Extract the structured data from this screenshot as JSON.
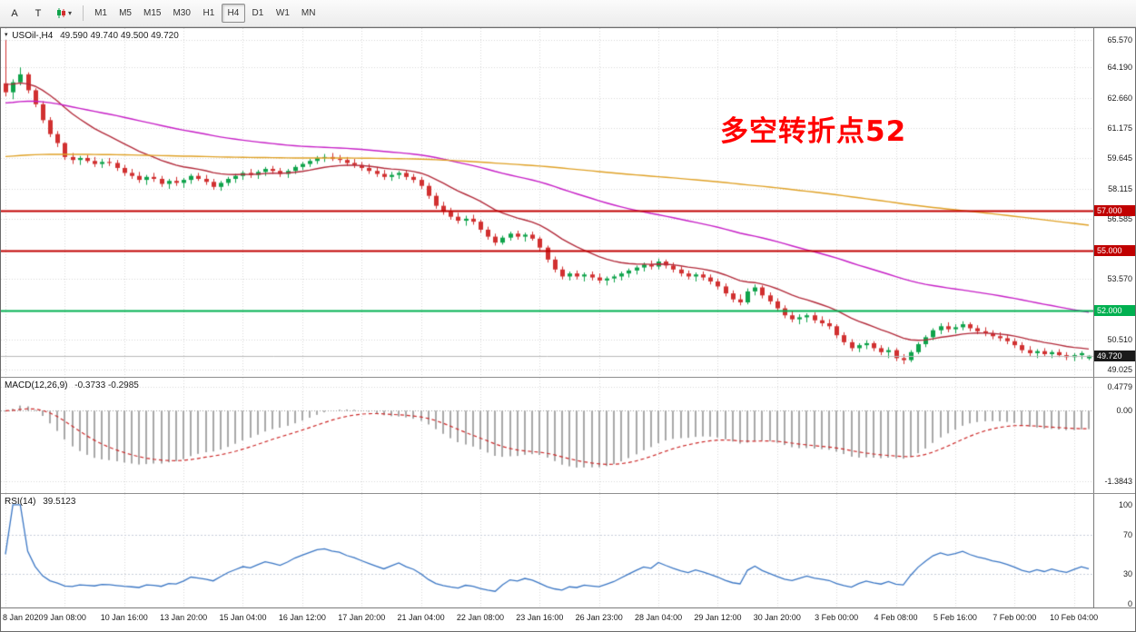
{
  "toolbar": {
    "tool_a": "A",
    "tool_t": "T",
    "caret": "▾",
    "timeframes": [
      "M1",
      "M5",
      "M15",
      "M30",
      "H1",
      "H4",
      "D1",
      "W1",
      "MN"
    ],
    "active_timeframe": "H4"
  },
  "chart": {
    "marker": "▾",
    "symbol_tf": "USOil-,H4",
    "ohlc": "49.590 49.740 49.500 49.720",
    "annotation": "多空转折点52"
  },
  "macd": {
    "label": "MACD(12,26,9)",
    "values": "-0.3733 -0.2985"
  },
  "rsi": {
    "label": "RSI(14)",
    "value": "39.5123"
  },
  "colors": {
    "candle_up": "#0fa34b",
    "candle_down": "#d13030",
    "grid": "#d6d6d6",
    "zero_line": "#9a9a9a",
    "macd_hist": "#a8a8a8",
    "macd_signal": "#cc2a2a",
    "rsi_line": "#3a76c4",
    "rsi_level": "#c6ccd8",
    "annotation": "#ff0000"
  },
  "chart_data": {
    "type": "candlestick",
    "symbol": "USOil-",
    "timeframe": "H4",
    "last_ohlc": {
      "open": 49.59,
      "high": 49.74,
      "low": 49.5,
      "close": 49.72
    },
    "price_axis": {
      "min": 48.66,
      "max": 66.17,
      "ticks": [
        "65.570",
        "64.190",
        "62.660",
        "61.175",
        "59.645",
        "58.115",
        "56.585",
        "53.570",
        "50.510",
        "49.025"
      ]
    },
    "levels": [
      {
        "value": 57.0,
        "label": "57.000",
        "line_color": "#c00000",
        "badge_color": "#c00000",
        "line_width": 2
      },
      {
        "value": 55.0,
        "label": "55.000",
        "line_color": "#c00000",
        "badge_color": "#c00000",
        "line_width": 2
      },
      {
        "value": 52.0,
        "label": "52.000",
        "line_color": "#00b050",
        "badge_color": "#00b050",
        "line_width": 2
      },
      {
        "value": 49.72,
        "label": "49.720",
        "line_color": "#b8b8b8",
        "badge_color": "#1a1a1a",
        "line_width": 1
      }
    ],
    "moving_averages": [
      {
        "name": "ma-fast",
        "period": 16,
        "seed": 63.4,
        "color": "#b22a3a"
      },
      {
        "name": "ma-mid",
        "period": 70,
        "seed": 62.4,
        "color": "#c61fc6"
      },
      {
        "name": "ma-slow",
        "period": 300,
        "seed": 59.7,
        "color": "#dfa126"
      }
    ],
    "macd": {
      "fast": 12,
      "slow": 26,
      "signal": 9,
      "axis": {
        "min": -1.62,
        "max": 0.65,
        "ticks": [
          "0.4779",
          "0.00",
          "-1.3843"
        ]
      }
    },
    "rsi": {
      "period": 14,
      "axis": {
        "min": -4,
        "max": 111,
        "ticks": [
          "100",
          "70",
          "30",
          "0"
        ],
        "levels": [
          70,
          30
        ]
      }
    },
    "time_labels": [
      "8 Jan 2020",
      "9 Jan 08:00",
      "10 Jan 16:00",
      "13 Jan 20:00",
      "15 Jan 04:00",
      "16 Jan 12:00",
      "17 Jan 20:00",
      "21 Jan 04:00",
      "22 Jan 08:00",
      "23 Jan 16:00",
      "26 Jan 23:00",
      "28 Jan 04:00",
      "29 Jan 12:00",
      "30 Jan 20:00",
      "3 Feb 00:00",
      "4 Feb 08:00",
      "5 Feb 16:00",
      "7 Feb 00:00",
      "10 Feb 04:00"
    ],
    "candles": [
      [
        63.4,
        65.57,
        62.75,
        62.95
      ],
      [
        62.95,
        63.6,
        62.6,
        63.45
      ],
      [
        63.45,
        64.2,
        63.3,
        63.85
      ],
      [
        63.85,
        63.95,
        62.9,
        63.05
      ],
      [
        63.05,
        63.15,
        62.2,
        62.35
      ],
      [
        62.35,
        62.5,
        61.4,
        61.55
      ],
      [
        61.55,
        61.7,
        60.7,
        60.85
      ],
      [
        60.85,
        61.0,
        60.2,
        60.4
      ],
      [
        60.4,
        60.45,
        59.55,
        59.7
      ],
      [
        59.7,
        59.9,
        59.35,
        59.55
      ],
      [
        59.55,
        59.75,
        59.3,
        59.65
      ],
      [
        59.65,
        59.8,
        59.4,
        59.5
      ],
      [
        59.5,
        59.7,
        59.2,
        59.35
      ],
      [
        59.35,
        59.6,
        59.15,
        59.45
      ],
      [
        59.45,
        59.65,
        59.25,
        59.4
      ],
      [
        59.4,
        59.55,
        59.0,
        59.15
      ],
      [
        59.15,
        59.3,
        58.75,
        58.9
      ],
      [
        58.9,
        59.1,
        58.6,
        58.75
      ],
      [
        58.75,
        58.95,
        58.4,
        58.55
      ],
      [
        58.55,
        58.8,
        58.3,
        58.7
      ],
      [
        58.7,
        58.9,
        58.45,
        58.6
      ],
      [
        58.6,
        58.75,
        58.2,
        58.35
      ],
      [
        58.35,
        58.6,
        58.1,
        58.5
      ],
      [
        58.5,
        58.7,
        58.25,
        58.4
      ],
      [
        58.4,
        58.65,
        58.15,
        58.55
      ],
      [
        58.55,
        58.85,
        58.35,
        58.75
      ],
      [
        58.75,
        58.9,
        58.5,
        58.6
      ],
      [
        58.6,
        58.8,
        58.3,
        58.45
      ],
      [
        58.45,
        58.6,
        58.05,
        58.2
      ],
      [
        58.2,
        58.5,
        58.0,
        58.4
      ],
      [
        58.4,
        58.7,
        58.25,
        58.6
      ],
      [
        58.6,
        58.85,
        58.4,
        58.75
      ],
      [
        58.75,
        59.0,
        58.55,
        58.9
      ],
      [
        58.9,
        59.1,
        58.65,
        58.8
      ],
      [
        58.8,
        59.05,
        58.6,
        58.95
      ],
      [
        58.95,
        59.2,
        58.75,
        59.1
      ],
      [
        59.1,
        59.25,
        58.85,
        59.0
      ],
      [
        59.0,
        59.15,
        58.7,
        58.85
      ],
      [
        58.85,
        59.1,
        58.65,
        59.0
      ],
      [
        59.0,
        59.3,
        58.85,
        59.2
      ],
      [
        59.2,
        59.45,
        59.05,
        59.35
      ],
      [
        59.35,
        59.6,
        59.2,
        59.5
      ],
      [
        59.5,
        59.75,
        59.35,
        59.65
      ],
      [
        59.65,
        59.85,
        59.45,
        59.7
      ],
      [
        59.7,
        59.9,
        59.5,
        59.6
      ],
      [
        59.6,
        59.8,
        59.4,
        59.55
      ],
      [
        59.55,
        59.7,
        59.25,
        59.4
      ],
      [
        59.4,
        59.6,
        59.15,
        59.3
      ],
      [
        59.3,
        59.45,
        59.0,
        59.15
      ],
      [
        59.15,
        59.35,
        58.85,
        59.0
      ],
      [
        59.0,
        59.2,
        58.7,
        58.85
      ],
      [
        58.85,
        59.05,
        58.55,
        58.7
      ],
      [
        58.7,
        58.95,
        58.5,
        58.8
      ],
      [
        58.8,
        59.0,
        58.6,
        58.9
      ],
      [
        58.9,
        59.05,
        58.55,
        58.7
      ],
      [
        58.7,
        58.85,
        58.4,
        58.55
      ],
      [
        58.55,
        58.7,
        58.1,
        58.25
      ],
      [
        58.25,
        58.4,
        57.6,
        57.75
      ],
      [
        57.75,
        57.9,
        57.1,
        57.25
      ],
      [
        57.25,
        57.45,
        56.8,
        56.95
      ],
      [
        56.95,
        57.15,
        56.55,
        56.7
      ],
      [
        56.7,
        56.9,
        56.35,
        56.5
      ],
      [
        56.5,
        56.75,
        56.25,
        56.6
      ],
      [
        56.6,
        56.8,
        56.3,
        56.45
      ],
      [
        56.45,
        56.55,
        55.9,
        56.05
      ],
      [
        56.05,
        56.2,
        55.55,
        55.7
      ],
      [
        55.7,
        55.85,
        55.25,
        55.4
      ],
      [
        55.4,
        55.75,
        55.3,
        55.65
      ],
      [
        55.65,
        55.95,
        55.5,
        55.85
      ],
      [
        55.85,
        56.0,
        55.55,
        55.7
      ],
      [
        55.7,
        55.9,
        55.45,
        55.8
      ],
      [
        55.8,
        55.95,
        55.5,
        55.6
      ],
      [
        55.6,
        55.7,
        55.0,
        55.15
      ],
      [
        55.15,
        55.25,
        54.4,
        54.55
      ],
      [
        54.55,
        54.7,
        53.9,
        54.05
      ],
      [
        54.05,
        54.2,
        53.55,
        53.7
      ],
      [
        53.7,
        53.95,
        53.5,
        53.85
      ],
      [
        53.85,
        54.0,
        53.55,
        53.7
      ],
      [
        53.7,
        53.9,
        53.45,
        53.8
      ],
      [
        53.8,
        53.95,
        53.5,
        53.65
      ],
      [
        53.65,
        53.85,
        53.35,
        53.5
      ],
      [
        53.5,
        53.7,
        53.25,
        53.6
      ],
      [
        53.6,
        53.8,
        53.4,
        53.7
      ],
      [
        53.7,
        53.95,
        53.5,
        53.85
      ],
      [
        53.85,
        54.1,
        53.65,
        54.0
      ],
      [
        54.0,
        54.25,
        53.8,
        54.15
      ],
      [
        54.15,
        54.4,
        53.95,
        54.3
      ],
      [
        54.3,
        54.5,
        54.05,
        54.2
      ],
      [
        54.2,
        54.6,
        54.05,
        54.45
      ],
      [
        54.45,
        54.55,
        54.1,
        54.25
      ],
      [
        54.25,
        54.4,
        53.9,
        54.05
      ],
      [
        54.05,
        54.2,
        53.7,
        53.85
      ],
      [
        53.85,
        54.0,
        53.55,
        53.7
      ],
      [
        53.7,
        53.9,
        53.45,
        53.8
      ],
      [
        53.8,
        53.95,
        53.5,
        53.65
      ],
      [
        53.65,
        53.8,
        53.3,
        53.45
      ],
      [
        53.45,
        53.6,
        53.05,
        53.2
      ],
      [
        53.2,
        53.35,
        52.7,
        52.85
      ],
      [
        52.85,
        53.0,
        52.4,
        52.55
      ],
      [
        52.55,
        52.8,
        52.25,
        52.4
      ],
      [
        52.4,
        53.1,
        52.3,
        52.95
      ],
      [
        52.95,
        53.3,
        52.75,
        53.15
      ],
      [
        53.15,
        53.25,
        52.6,
        52.75
      ],
      [
        52.75,
        52.9,
        52.3,
        52.45
      ],
      [
        52.45,
        52.6,
        51.95,
        52.1
      ],
      [
        52.1,
        52.25,
        51.6,
        51.75
      ],
      [
        51.75,
        51.95,
        51.4,
        51.55
      ],
      [
        51.55,
        51.8,
        51.3,
        51.65
      ],
      [
        51.65,
        51.85,
        51.4,
        51.75
      ],
      [
        51.75,
        51.9,
        51.35,
        51.5
      ],
      [
        51.5,
        51.7,
        51.2,
        51.35
      ],
      [
        51.35,
        51.55,
        51.05,
        51.2
      ],
      [
        51.2,
        51.3,
        50.6,
        50.75
      ],
      [
        50.75,
        50.9,
        50.25,
        50.4
      ],
      [
        50.4,
        50.55,
        49.95,
        50.1
      ],
      [
        50.1,
        50.35,
        49.9,
        50.25
      ],
      [
        50.25,
        50.5,
        50.05,
        50.35
      ],
      [
        50.35,
        50.45,
        49.95,
        50.1
      ],
      [
        50.1,
        50.25,
        49.75,
        49.9
      ],
      [
        49.9,
        50.15,
        49.6,
        50.0
      ],
      [
        50.0,
        50.1,
        49.45,
        49.6
      ],
      [
        49.6,
        49.8,
        49.3,
        49.5
      ],
      [
        49.5,
        50.0,
        49.4,
        49.9
      ],
      [
        49.9,
        50.4,
        49.8,
        50.3
      ],
      [
        50.3,
        50.75,
        50.15,
        50.65
      ],
      [
        50.65,
        51.1,
        50.5,
        51.0
      ],
      [
        51.0,
        51.35,
        50.8,
        51.2
      ],
      [
        51.2,
        51.4,
        50.9,
        51.05
      ],
      [
        51.05,
        51.3,
        50.85,
        51.15
      ],
      [
        51.15,
        51.45,
        51.0,
        51.3
      ],
      [
        51.3,
        51.4,
        50.95,
        51.1
      ],
      [
        51.1,
        51.25,
        50.8,
        50.95
      ],
      [
        50.95,
        51.15,
        50.7,
        50.85
      ],
      [
        50.85,
        51.0,
        50.55,
        50.7
      ],
      [
        50.7,
        50.9,
        50.45,
        50.6
      ],
      [
        50.6,
        50.75,
        50.3,
        50.45
      ],
      [
        50.45,
        50.6,
        50.1,
        50.25
      ],
      [
        50.25,
        50.4,
        49.85,
        50.0
      ],
      [
        50.0,
        50.2,
        49.7,
        49.85
      ],
      [
        49.85,
        50.05,
        49.6,
        49.95
      ],
      [
        49.95,
        50.1,
        49.7,
        49.8
      ],
      [
        49.8,
        50.0,
        49.6,
        49.9
      ],
      [
        49.9,
        50.05,
        49.65,
        49.75
      ],
      [
        49.75,
        49.9,
        49.5,
        49.65
      ],
      [
        49.65,
        49.85,
        49.45,
        49.75
      ],
      [
        49.75,
        49.95,
        49.55,
        49.85
      ],
      [
        49.59,
        49.74,
        49.5,
        49.72
      ]
    ]
  }
}
